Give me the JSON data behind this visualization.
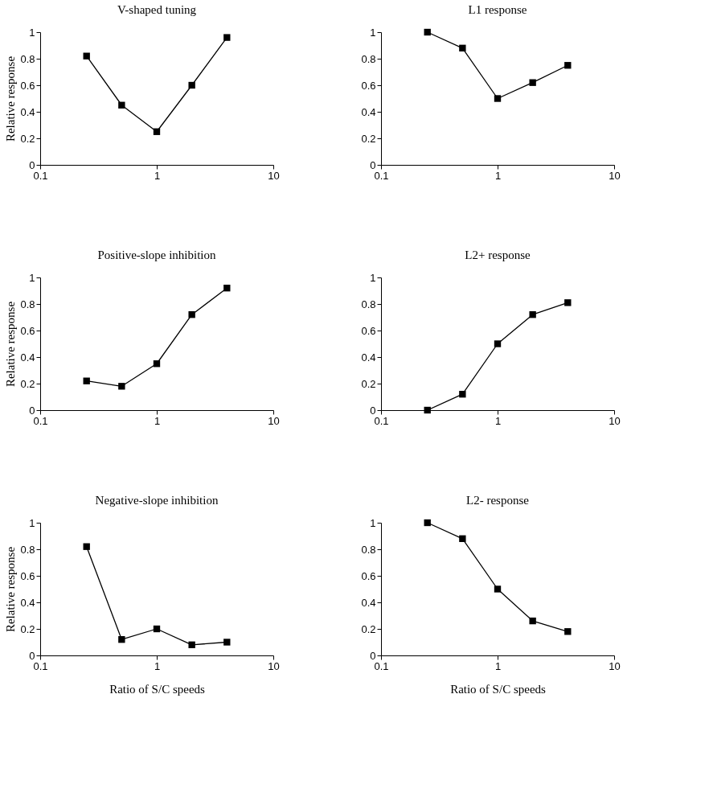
{
  "chart_data": [
    {
      "type": "line",
      "title": "V-shaped tuning",
      "ylabel": "Relative response",
      "x": [
        0.25,
        0.5,
        1,
        2,
        4
      ],
      "series": [
        {
          "color": "#000000",
          "values": [
            0.82,
            0.45,
            0.25,
            0.6,
            0.96
          ]
        }
      ],
      "log": "x",
      "xlim": [
        0.1,
        10
      ],
      "xticks": [
        0.1,
        1,
        10
      ],
      "ylim": [
        0,
        1
      ],
      "yticks": [
        0,
        0.2,
        0.4,
        0.6,
        0.8,
        1
      ],
      "grid": false,
      "marker": "square",
      "line_style": "solid"
    },
    {
      "type": "line",
      "title": "L1 response",
      "x": [
        0.25,
        0.5,
        1,
        2,
        4
      ],
      "series": [
        {
          "color": "#000000",
          "values": [
            1.0,
            0.88,
            0.5,
            0.62,
            0.75
          ]
        }
      ],
      "log": "x",
      "xlim": [
        0.1,
        10
      ],
      "xticks": [
        0.1,
        1,
        10
      ],
      "ylim": [
        0,
        1
      ],
      "yticks": [
        0,
        0.2,
        0.4,
        0.6,
        0.8,
        1
      ],
      "grid": false,
      "marker": "square",
      "line_style": "solid"
    },
    {
      "type": "line",
      "title": "Positive-slope inhibition",
      "ylabel": "Relative response",
      "x": [
        0.25,
        0.5,
        1,
        2,
        4
      ],
      "series": [
        {
          "color": "#000000",
          "values": [
            0.22,
            0.18,
            0.35,
            0.72,
            0.92
          ]
        }
      ],
      "log": "x",
      "xlim": [
        0.1,
        10
      ],
      "xticks": [
        0.1,
        1,
        10
      ],
      "ylim": [
        0,
        1
      ],
      "yticks": [
        0,
        0.2,
        0.4,
        0.6,
        0.8,
        1
      ],
      "grid": false,
      "marker": "square",
      "line_style": "solid"
    },
    {
      "type": "line",
      "title": "L2+ response",
      "x": [
        0.25,
        0.5,
        1,
        2,
        4
      ],
      "series": [
        {
          "color": "#000000",
          "values": [
            0.0,
            0.12,
            0.5,
            0.72,
            0.81
          ]
        }
      ],
      "log": "x",
      "xlim": [
        0.1,
        10
      ],
      "xticks": [
        0.1,
        1,
        10
      ],
      "ylim": [
        0,
        1
      ],
      "yticks": [
        0,
        0.2,
        0.4,
        0.6,
        0.8,
        1
      ],
      "grid": false,
      "marker": "square",
      "line_style": "solid"
    },
    {
      "type": "line",
      "title": "Negative-slope inhibition",
      "ylabel": "Relative response",
      "xlabel": "Ratio of S/C speeds",
      "x": [
        0.25,
        0.5,
        1,
        2,
        4
      ],
      "series": [
        {
          "color": "#000000",
          "values": [
            0.82,
            0.12,
            0.2,
            0.08,
            0.1
          ]
        }
      ],
      "log": "x",
      "xlim": [
        0.1,
        10
      ],
      "xticks": [
        0.1,
        1,
        10
      ],
      "ylim": [
        0,
        1
      ],
      "yticks": [
        0,
        0.2,
        0.4,
        0.6,
        0.8,
        1
      ],
      "grid": false,
      "marker": "square",
      "line_style": "solid"
    },
    {
      "type": "line",
      "title": "L2- response",
      "xlabel": "Ratio of S/C speeds",
      "x": [
        0.25,
        0.5,
        1,
        2,
        4
      ],
      "series": [
        {
          "color": "#000000",
          "values": [
            1.0,
            0.88,
            0.5,
            0.26,
            0.18
          ]
        }
      ],
      "log": "x",
      "xlim": [
        0.1,
        10
      ],
      "xticks": [
        0.1,
        1,
        10
      ],
      "ylim": [
        0,
        1
      ],
      "yticks": [
        0,
        0.2,
        0.4,
        0.6,
        0.8,
        1
      ],
      "grid": false,
      "marker": "square",
      "line_style": "solid"
    }
  ]
}
